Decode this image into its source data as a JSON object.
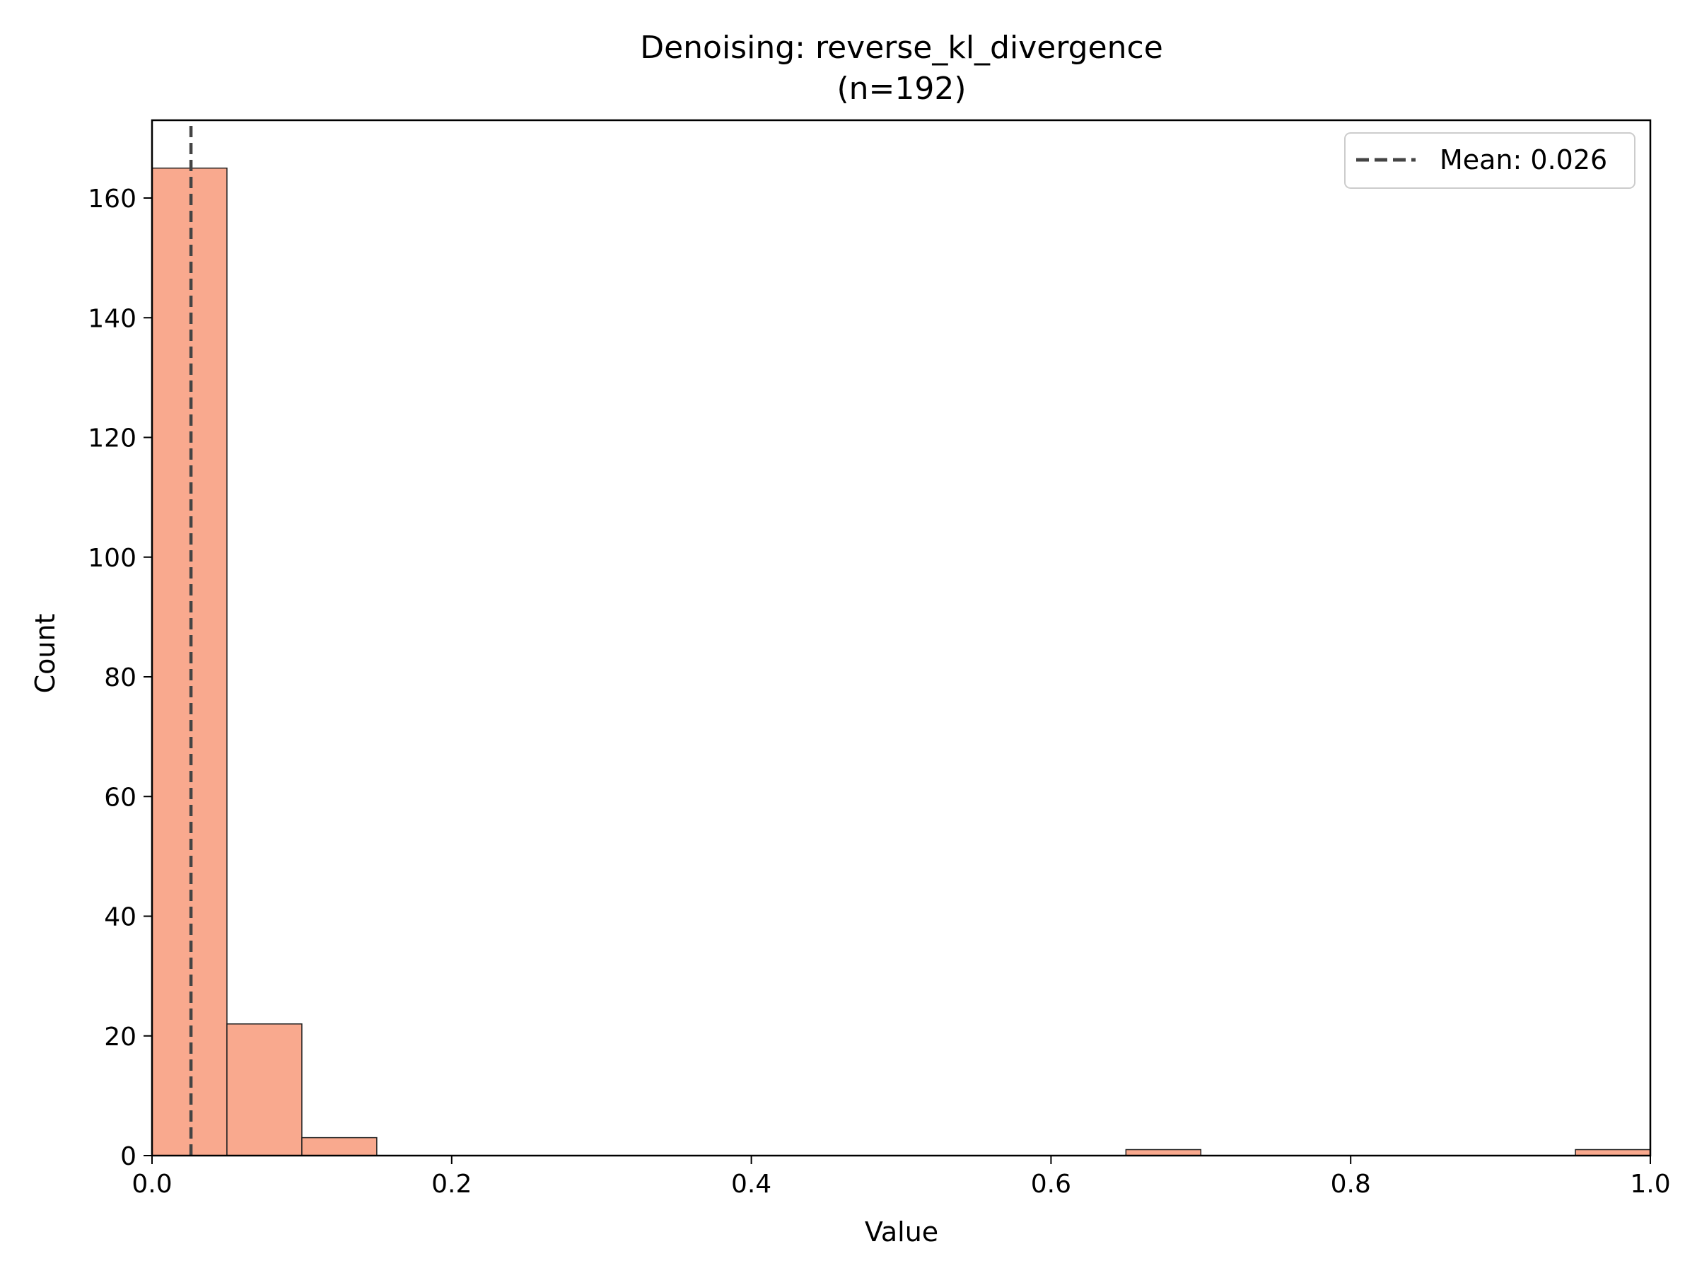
{
  "chart_data": {
    "type": "bar",
    "title": "Denoising: reverse_kl_divergence",
    "subtitle": "(n=192)",
    "xlabel": "Value",
    "ylabel": "Count",
    "xlim": [
      0,
      1
    ],
    "ylim": [
      0,
      173
    ],
    "bin_width": 0.05,
    "bins": [
      {
        "x0": 0.0,
        "x1": 0.05,
        "count": 165
      },
      {
        "x0": 0.05,
        "x1": 0.1,
        "count": 22
      },
      {
        "x0": 0.1,
        "x1": 0.15,
        "count": 3
      },
      {
        "x0": 0.15,
        "x1": 0.2,
        "count": 0
      },
      {
        "x0": 0.2,
        "x1": 0.25,
        "count": 0
      },
      {
        "x0": 0.25,
        "x1": 0.3,
        "count": 0
      },
      {
        "x0": 0.3,
        "x1": 0.35,
        "count": 0
      },
      {
        "x0": 0.35,
        "x1": 0.4,
        "count": 0
      },
      {
        "x0": 0.4,
        "x1": 0.45,
        "count": 0
      },
      {
        "x0": 0.45,
        "x1": 0.5,
        "count": 0
      },
      {
        "x0": 0.5,
        "x1": 0.55,
        "count": 0
      },
      {
        "x0": 0.55,
        "x1": 0.6,
        "count": 0
      },
      {
        "x0": 0.6,
        "x1": 0.65,
        "count": 0
      },
      {
        "x0": 0.65,
        "x1": 0.7,
        "count": 1
      },
      {
        "x0": 0.7,
        "x1": 0.75,
        "count": 0
      },
      {
        "x0": 0.75,
        "x1": 0.8,
        "count": 0
      },
      {
        "x0": 0.8,
        "x1": 0.85,
        "count": 0
      },
      {
        "x0": 0.85,
        "x1": 0.9,
        "count": 0
      },
      {
        "x0": 0.9,
        "x1": 0.95,
        "count": 0
      },
      {
        "x0": 0.95,
        "x1": 1.0,
        "count": 1
      }
    ],
    "x_ticks": [
      {
        "value": 0.0,
        "label": "0.0"
      },
      {
        "value": 0.2,
        "label": "0.2"
      },
      {
        "value": 0.4,
        "label": "0.4"
      },
      {
        "value": 0.6,
        "label": "0.6"
      },
      {
        "value": 0.8,
        "label": "0.8"
      },
      {
        "value": 1.0,
        "label": "1.0"
      }
    ],
    "y_ticks": [
      {
        "value": 0,
        "label": "0"
      },
      {
        "value": 20,
        "label": "20"
      },
      {
        "value": 40,
        "label": "40"
      },
      {
        "value": 60,
        "label": "60"
      },
      {
        "value": 80,
        "label": "80"
      },
      {
        "value": 100,
        "label": "100"
      },
      {
        "value": 120,
        "label": "120"
      },
      {
        "value": 140,
        "label": "140"
      },
      {
        "value": 160,
        "label": "160"
      }
    ],
    "mean_line": {
      "value": 0.026,
      "label": "Mean: 0.026",
      "color": "#444444",
      "style": "dashed"
    },
    "bar_color": "#f9a98e",
    "edge_color": "#222222",
    "grid": false,
    "legend_position": "top-right"
  }
}
